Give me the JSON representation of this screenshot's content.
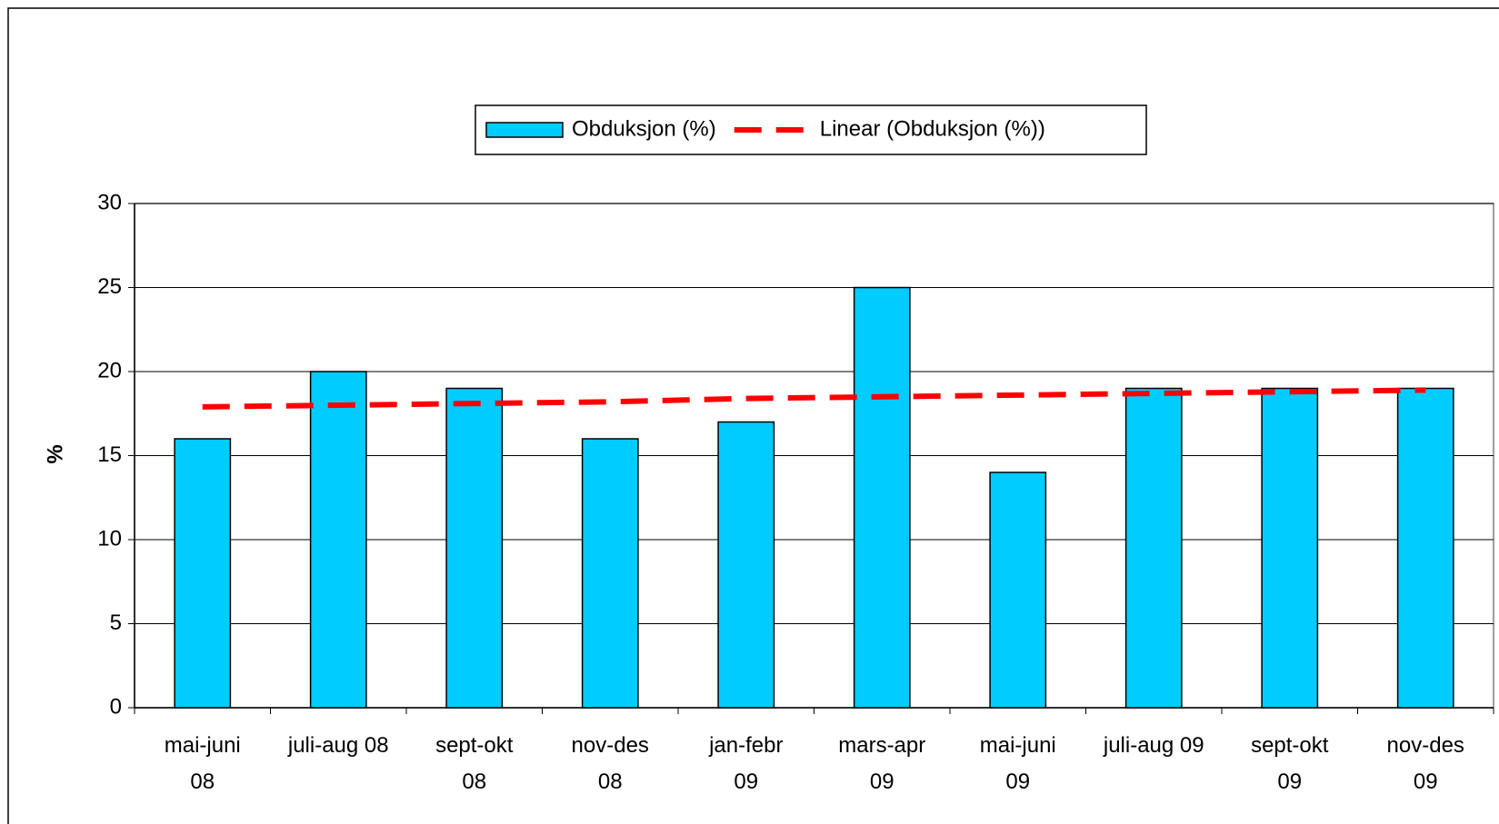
{
  "chart_data": {
    "type": "bar",
    "y_label": "%",
    "categories": [
      "mai-juni\n08",
      "juli-aug 08",
      "sept-okt\n08",
      "nov-des\n08",
      "jan-febr\n09",
      "mars-apr\n09",
      "mai-juni\n09",
      "juli-aug 09",
      "sept-okt\n09",
      "nov-des\n09"
    ],
    "series": [
      {
        "name": "Obduksjon (%)",
        "type": "bar",
        "color": "#00ccff",
        "values": [
          16,
          20,
          19,
          16,
          17,
          25,
          14,
          19,
          19,
          19
        ]
      },
      {
        "name": "Linear (Obduksjon (%))",
        "type": "line",
        "color": "#ff0000",
        "values": [
          17.9,
          18.0,
          18.1,
          18.2,
          18.4,
          18.5,
          18.6,
          18.7,
          18.8,
          18.9
        ]
      }
    ],
    "ylim": [
      0,
      30
    ],
    "yticks": [
      0,
      5,
      10,
      15,
      20,
      25,
      30
    ],
    "grid": true,
    "legend": "top"
  }
}
